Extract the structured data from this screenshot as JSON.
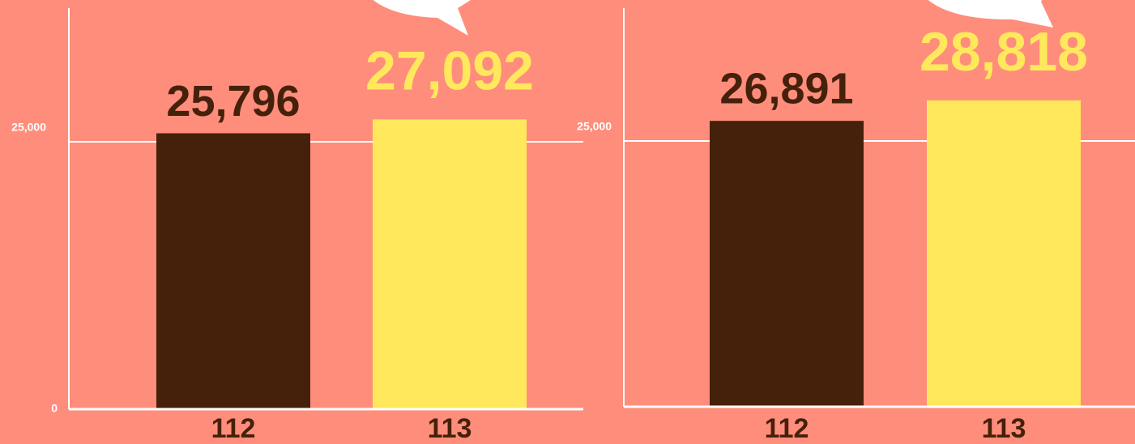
{
  "chart_data": [
    {
      "type": "bar",
      "categories": [
        "112",
        "113"
      ],
      "values": [
        25796,
        27092
      ],
      "value_labels": [
        "25,796",
        "27,092"
      ],
      "colors": [
        "#45210b",
        "#ffe85c"
      ],
      "ylim": [
        0,
        37500
      ],
      "yticks": [
        0,
        {
          "value": 25000,
          "label": "25,000"
        }
      ],
      "grid": true
    },
    {
      "type": "bar",
      "categories": [
        "112",
        "113"
      ],
      "values": [
        26891,
        28818
      ],
      "value_labels": [
        "26,891",
        "28,818"
      ],
      "colors": [
        "#45210b",
        "#ffe85c"
      ],
      "ylim": [
        0,
        37500
      ],
      "yticks": [
        {
          "value": 25000,
          "label": "25,000"
        }
      ],
      "grid": true
    }
  ]
}
